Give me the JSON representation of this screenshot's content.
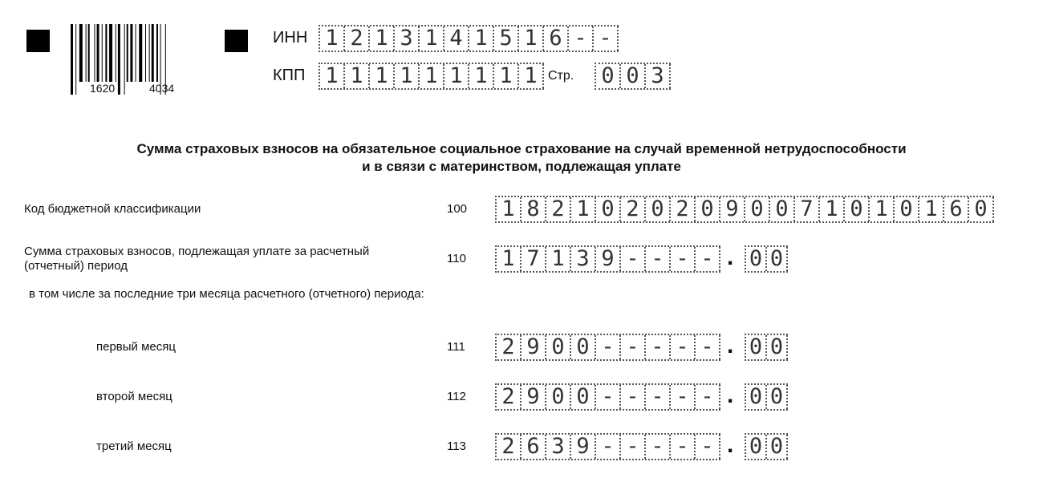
{
  "header": {
    "barcode_numbers": [
      "1620",
      "4034"
    ],
    "inn_label": "ИНН",
    "inn": "1213141516--",
    "kpp_label": "КПП",
    "kpp": "111111111",
    "page_label": "Стр.",
    "page": "003"
  },
  "title": {
    "line1": "Сумма страховых взносов на обязательное социальное страхование на случай временной нетрудоспособности",
    "line2": "и в связи с материнством, подлежащая уплате"
  },
  "rows": [
    {
      "label": "Код бюджетной классификации",
      "code": "100",
      "value": "18210202090071010160"
    },
    {
      "label": "Сумма страховых взносов, подлежащая уплате за расчетный (отчетный) период",
      "code": "110",
      "integer": "17139----",
      "decimal": "00"
    }
  ],
  "subheading": "в том числе за последние три месяца расчетного (отчетного) периода:",
  "months": [
    {
      "label": "первый месяц",
      "code": "111",
      "integer": "2900-----",
      "decimal": "00"
    },
    {
      "label": "второй месяц",
      "code": "112",
      "integer": "2900-----",
      "decimal": "00"
    },
    {
      "label": "третий месяц",
      "code": "113",
      "integer": "2639-----",
      "decimal": "00"
    }
  ],
  "decimal_separator": "."
}
